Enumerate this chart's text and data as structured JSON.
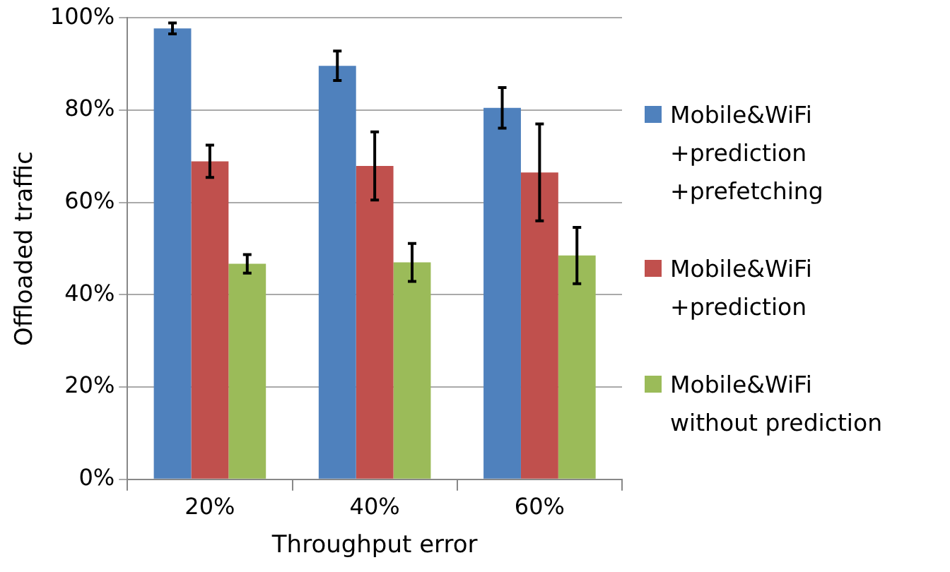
{
  "chart_data": {
    "type": "bar",
    "xlabel": "Throughput error",
    "ylabel": "Offloaded traffic",
    "categories": [
      "20%",
      "40%",
      "60%"
    ],
    "series": [
      {
        "name": "Mobile&WiFi\n+prediction\n+prefetching",
        "color": "#4f81bd",
        "values": [
          97.7,
          89.6,
          80.5
        ],
        "errors": [
          1.2,
          3.2,
          4.4
        ]
      },
      {
        "name": "Mobile&WiFi\n+prediction",
        "color": "#c0504d",
        "values": [
          68.9,
          67.9,
          66.5
        ],
        "errors": [
          3.5,
          7.4,
          10.5
        ]
      },
      {
        "name": "Mobile&WiFi\nwithout prediction",
        "color": "#9bbb59",
        "values": [
          46.7,
          47.0,
          48.5
        ],
        "errors": [
          2,
          4.1,
          6.1
        ]
      }
    ],
    "ylim": [
      0,
      100
    ],
    "yticks": [
      {
        "value": 0,
        "label": "0%"
      },
      {
        "value": 20,
        "label": "20%"
      },
      {
        "value": 40,
        "label": "40%"
      },
      {
        "value": 60,
        "label": "60%"
      },
      {
        "value": 80,
        "label": "80%"
      },
      {
        "value": 100,
        "label": "100%"
      }
    ],
    "grid": "y",
    "legend": "right"
  }
}
